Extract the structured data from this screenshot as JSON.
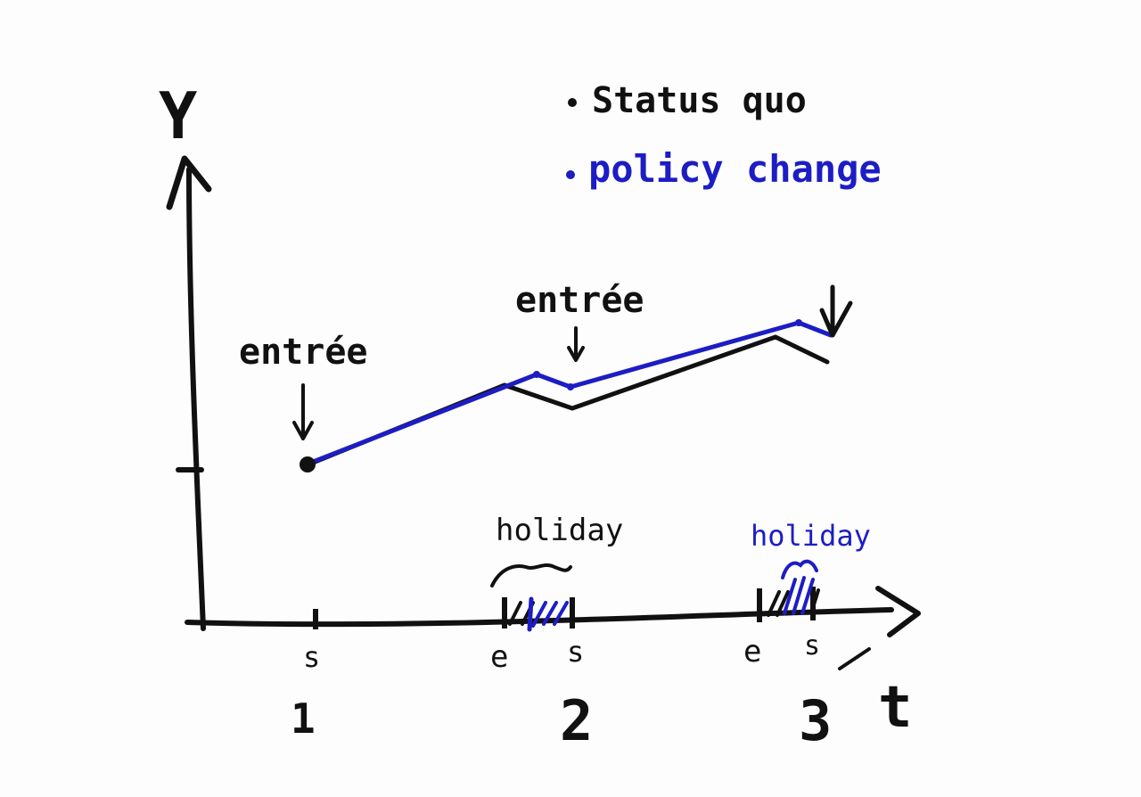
{
  "colors": {
    "ink": "#111111",
    "blue": "#1d1dc4"
  },
  "axes": {
    "y_label": "Y",
    "x_label": "t"
  },
  "legend": [
    {
      "label": "Status quo",
      "color": "#111111"
    },
    {
      "label": "policy change",
      "color": "#1d1dc4"
    }
  ],
  "annotations": {
    "entree_1": "entrée",
    "entree_2": "entrée",
    "holiday_black": "holiday",
    "holiday_blue": "holiday"
  },
  "tick_marks": {
    "s1": "s",
    "e2": "e",
    "s2": "s",
    "e3": "e",
    "s3": "s"
  },
  "periods": {
    "p1": "1",
    "p2": "2",
    "p3": "3"
  }
}
